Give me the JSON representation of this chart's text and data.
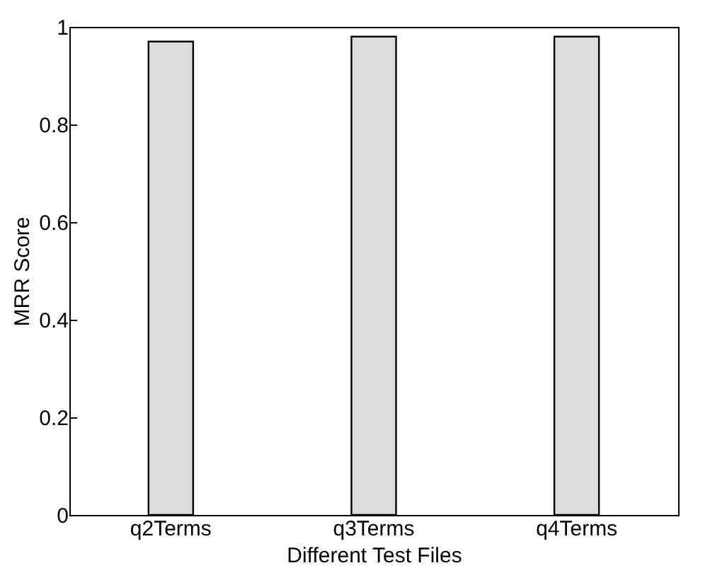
{
  "chart_data": {
    "type": "bar",
    "xlabel": "Different Test Files",
    "ylabel": "MRR Score",
    "categories": [
      "q2Terms",
      "q3Terms",
      "q4Terms"
    ],
    "values": [
      0.97,
      0.98,
      0.98
    ],
    "color": "#dcdcdc",
    "ylim": [
      0,
      1
    ],
    "yticks": [
      0,
      0.2,
      0.4,
      0.6,
      0.8,
      1
    ],
    "grid": false
  }
}
